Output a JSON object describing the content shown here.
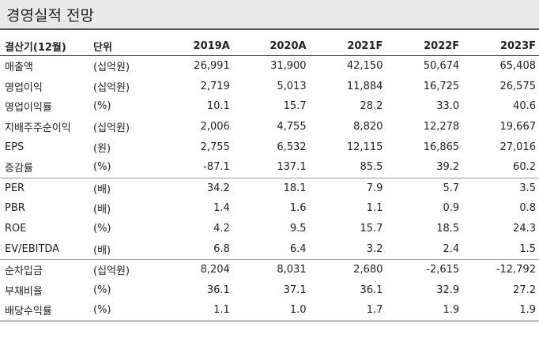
{
  "title": "경영실적 전망",
  "header": {
    "col_name": "결산기(12월)",
    "col_unit": "단위",
    "years": [
      "2019A",
      "2020A",
      "2021F",
      "2022F",
      "2023F"
    ]
  },
  "rows": [
    {
      "name": "매출액",
      "unit": "(십억원)",
      "values": [
        "26,991",
        "31,900",
        "42,150",
        "50,674",
        "65,408"
      ]
    },
    {
      "name": "영업이익",
      "unit": "(십억원)",
      "values": [
        "2,719",
        "5,013",
        "11,884",
        "16,725",
        "26,575"
      ]
    },
    {
      "name": "영업이익률",
      "unit": "(%)",
      "values": [
        "10.1",
        "15.7",
        "28.2",
        "33.0",
        "40.6"
      ]
    },
    {
      "name": "지배주주순이익",
      "unit": "(십억원)",
      "values": [
        "2,006",
        "4,755",
        "8,820",
        "12,278",
        "19,667"
      ]
    },
    {
      "name": "EPS",
      "unit": "(원)",
      "values": [
        "2,755",
        "6,532",
        "12,115",
        "16,865",
        "27,016"
      ]
    },
    {
      "name": "증감률",
      "unit": "(%)",
      "values": [
        "-87.1",
        "137.1",
        "85.5",
        "39.2",
        "60.2"
      ]
    },
    {
      "name": "PER",
      "unit": "(배)",
      "values": [
        "34.2",
        "18.1",
        "7.9",
        "5.7",
        "3.5"
      ]
    },
    {
      "name": "PBR",
      "unit": "(배)",
      "values": [
        "1.4",
        "1.6",
        "1.1",
        "0.9",
        "0.8"
      ]
    },
    {
      "name": "ROE",
      "unit": "(%)",
      "values": [
        "4.2",
        "9.5",
        "15.7",
        "18.5",
        "24.3"
      ]
    },
    {
      "name": "EV/EBITDA",
      "unit": "(배)",
      "values": [
        "6.8",
        "6.4",
        "3.2",
        "2.4",
        "1.5"
      ]
    },
    {
      "name": "순차입금",
      "unit": "(십억원)",
      "values": [
        "8,204",
        "8,031",
        "2,680",
        "-2,615",
        "-12,792"
      ]
    },
    {
      "name": "부채비율",
      "unit": "(%)",
      "values": [
        "36.1",
        "37.1",
        "36.1",
        "32.9",
        "27.2"
      ]
    },
    {
      "name": "배당수익률",
      "unit": "(%)",
      "values": [
        "1.1",
        "1.0",
        "1.7",
        "1.9",
        "1.9"
      ]
    }
  ]
}
